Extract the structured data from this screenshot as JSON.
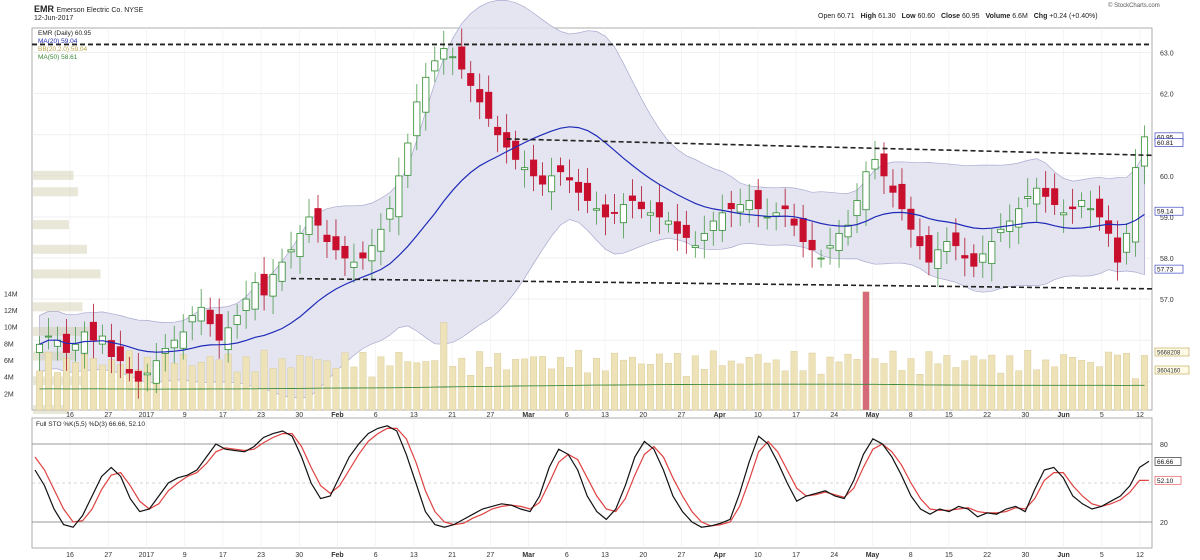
{
  "header": {
    "ticker": "EMR",
    "company": "Emerson Electric Co. NYSE",
    "date": "12-Jun-2017",
    "open_label": "Open",
    "open": "60.71",
    "high_label": "High",
    "high": "61.30",
    "low_label": "Low",
    "low": "60.60",
    "close_label": "Close",
    "close": "60.95",
    "volume_label": "Volume",
    "volume": "6.6M",
    "chg_label": "Chg",
    "chg": "+0.24 (+0.40%)",
    "credit": "© StockCharts.com"
  },
  "chart_data": [
    {
      "type": "candlestick",
      "name": "price",
      "legend": [
        "EMR (Daily) 60.95",
        "MA(20) 59.04",
        "BB(20,2.0) 59.04",
        "MA(50) 58.61"
      ],
      "yticks": [
        57.0,
        58.0,
        59.0,
        60.0,
        61.0,
        62.0,
        63.0
      ],
      "ylim": [
        54.3,
        63.6
      ],
      "right_labels": [
        "60.95",
        "60.81",
        "59.14",
        "57.73"
      ],
      "resistance_top": 63.2,
      "upper_trend": {
        "start": 60.9,
        "end": 60.5
      },
      "lower_trend": {
        "start": 57.5,
        "end": 57.25
      },
      "x_labels": [
        "16",
        "27",
        "2017",
        "9",
        "17",
        "23",
        "30",
        "Feb",
        "6",
        "13",
        "21",
        "27",
        "Mar",
        "6",
        "13",
        "20",
        "27",
        "Apr",
        "10",
        "17",
        "24",
        "May",
        "8",
        "15",
        "22",
        "30",
        "Jun",
        "5",
        "12"
      ],
      "close_trend": [
        55.9,
        56.1,
        56.0,
        55.7,
        55.9,
        56.2,
        56.0,
        56.1,
        55.6,
        55.5,
        55.2,
        55.0,
        55.2,
        55.5,
        55.8,
        56.0,
        56.2,
        56.6,
        56.8,
        56.4,
        56.0,
        56.3,
        56.6,
        57.0,
        57.4,
        57.1,
        57.6,
        57.9,
        58.2,
        58.6,
        59.0,
        58.8,
        58.4,
        58.2,
        58.0,
        57.9,
        58.0,
        58.3,
        58.7,
        59.2,
        60.0,
        60.8,
        61.8,
        62.4,
        62.8,
        63.1,
        62.9,
        62.6,
        62.2,
        61.8,
        61.4,
        61.0,
        60.7,
        60.4,
        60.2,
        60.0,
        59.8,
        60.0,
        60.1,
        59.9,
        59.6,
        59.4,
        59.2,
        59.0,
        59.1,
        59.3,
        59.4,
        59.2,
        59.1,
        59.0,
        58.9,
        58.6,
        58.5,
        58.3,
        58.6,
        58.9,
        59.1,
        59.2,
        59.3,
        59.4,
        59.2,
        59.0,
        59.1,
        59.2,
        58.8,
        58.4,
        58.2,
        58.0,
        58.3,
        58.6,
        58.8,
        59.4,
        60.1,
        60.4,
        60.0,
        59.6,
        59.2,
        58.7,
        58.3,
        57.9,
        58.2,
        58.4,
        58.3,
        58.0,
        57.8,
        58.1,
        58.4,
        58.7,
        58.9,
        59.2,
        59.5,
        59.7,
        59.5,
        59.3,
        59.1,
        59.2,
        59.4,
        59.2,
        59.0,
        58.6,
        57.9,
        58.6,
        60.2,
        60.95
      ],
      "volume_yticks": [
        "2M",
        "4M",
        "6M",
        "8M",
        "10M",
        "12M",
        "14M"
      ],
      "volume_right_labels": [
        "5668208",
        "3604160"
      ],
      "volume_profile": [
        60.0,
        59.6,
        58.8,
        58.2,
        57.6,
        56.8,
        56.2,
        55.6,
        55.0,
        54.3
      ],
      "volume_profile_widths": [
        0.45,
        0.5,
        0.4,
        0.6,
        0.75,
        0.55,
        0.62,
        0.48,
        0.58,
        0.4
      ]
    },
    {
      "type": "line",
      "name": "stochastic",
      "legend": [
        "Full STO %K(5,5) %D(3) 66.66, 52.10"
      ],
      "ylim": [
        0,
        100
      ],
      "yticks": [
        20,
        80
      ],
      "right_labels": [
        "66.66",
        "52.10"
      ],
      "series": [
        {
          "name": "%K",
          "color": "#111111",
          "values": [
            60,
            48,
            30,
            18,
            16,
            25,
            40,
            55,
            62,
            55,
            38,
            28,
            30,
            40,
            50,
            54,
            56,
            60,
            70,
            80,
            76,
            75,
            74,
            78,
            85,
            88,
            90,
            86,
            70,
            50,
            38,
            40,
            55,
            70,
            80,
            88,
            92,
            94,
            90,
            72,
            50,
            28,
            18,
            16,
            18,
            22,
            26,
            30,
            32,
            34,
            33,
            30,
            28,
            40,
            62,
            76,
            72,
            60,
            40,
            28,
            22,
            30,
            48,
            70,
            82,
            76,
            60,
            40,
            28,
            20,
            16,
            17,
            19,
            22,
            42,
            66,
            86,
            80,
            66,
            50,
            36,
            40,
            42,
            44,
            40,
            38,
            52,
            72,
            84,
            80,
            70,
            56,
            40,
            30,
            26,
            30,
            28,
            32,
            30,
            24,
            27,
            26,
            30,
            32,
            28,
            45,
            60,
            62,
            54,
            40,
            34,
            30,
            32,
            36,
            40,
            48,
            62,
            66.66
          ]
        },
        {
          "name": "%D",
          "color": "#e04040",
          "values": [
            70,
            60,
            45,
            30,
            20,
            21,
            30,
            45,
            56,
            58,
            48,
            36,
            30,
            34,
            44,
            50,
            55,
            58,
            65,
            74,
            77,
            76,
            75,
            76,
            81,
            85,
            88,
            88,
            78,
            62,
            48,
            42,
            48,
            60,
            72,
            82,
            88,
            92,
            92,
            84,
            66,
            44,
            28,
            20,
            18,
            19,
            23,
            26,
            30,
            32,
            33,
            32,
            30,
            35,
            50,
            66,
            72,
            68,
            54,
            40,
            30,
            28,
            38,
            56,
            72,
            78,
            70,
            54,
            40,
            28,
            20,
            17,
            18,
            20,
            32,
            52,
            74,
            82,
            74,
            60,
            46,
            40,
            41,
            43,
            41,
            39,
            46,
            62,
            76,
            80,
            74,
            64,
            50,
            38,
            30,
            29,
            29,
            30,
            31,
            28,
            27,
            27,
            28,
            31,
            30,
            38,
            52,
            58,
            58,
            48,
            40,
            34,
            32,
            34,
            37,
            43,
            52,
            52.1
          ]
        }
      ]
    }
  ]
}
